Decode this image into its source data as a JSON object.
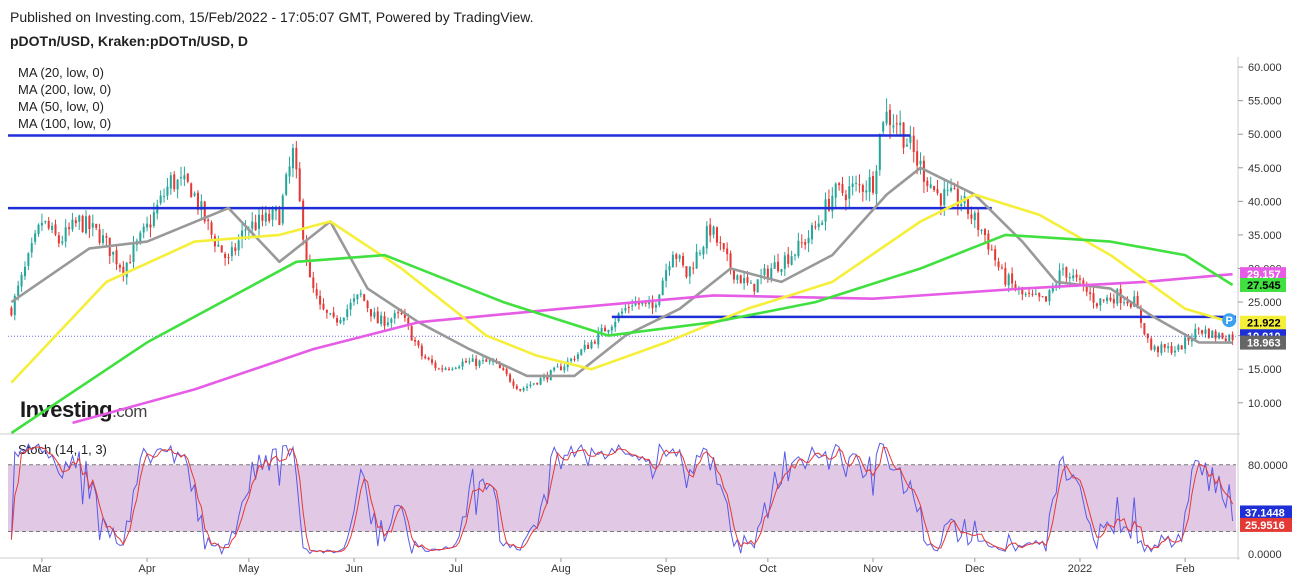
{
  "header": {
    "published": "Published on Investing.com, 15/Feb/2022 - 17:05:07 GMT, Powered by TradingView.",
    "symbol": "pDOTn/USD, Kraken:pDOTn/USD, D"
  },
  "logo": {
    "main": "Investing",
    "suffix": ".com"
  },
  "colors": {
    "up": "#26a69a",
    "down": "#e53935",
    "ma20": "#999999",
    "ma200": "#e65ce6",
    "ma50": "#f5ef3a",
    "ma100": "#3fe03f",
    "hline": "#1f2fd8",
    "stoch_k": "#5a5ae6",
    "stoch_d": "#e53935",
    "stoch_band": "#dcbfe0"
  },
  "chart_data": {
    "type": "candlestick",
    "ma_legend": [
      "MA (20, low, 0)",
      "MA (200, low, 0)",
      "MA (50, low, 0)",
      "MA (100, low, 0)"
    ],
    "x_labels": [
      "Mar",
      "Apr",
      "May",
      "Jun",
      "Jul",
      "Aug",
      "Sep",
      "Oct",
      "Nov",
      "Dec",
      "2022",
      "Feb"
    ],
    "y_ticks": [
      "60.000",
      "55.000",
      "50.000",
      "45.000",
      "40.000",
      "35.000",
      "30.000",
      "25.000",
      "20.000",
      "15.000",
      "10.000"
    ],
    "ylim": [
      5.5,
      61.5
    ],
    "horizontal_lines": [
      49.8,
      39.0,
      22.8
    ],
    "price_path": [
      {
        "x": "2021-02-20",
        "v": 24
      },
      {
        "x": "2021-03-01",
        "v": 37
      },
      {
        "x": "2021-03-06",
        "v": 34
      },
      {
        "x": "2021-03-12",
        "v": 37
      },
      {
        "x": "2021-03-18",
        "v": 35
      },
      {
        "x": "2021-03-25",
        "v": 30
      },
      {
        "x": "2021-04-01",
        "v": 36
      },
      {
        "x": "2021-04-08",
        "v": 43
      },
      {
        "x": "2021-04-14",
        "v": 42
      },
      {
        "x": "2021-04-20",
        "v": 35
      },
      {
        "x": "2021-04-25",
        "v": 31
      },
      {
        "x": "2021-04-30",
        "v": 36
      },
      {
        "x": "2021-05-10",
        "v": 38
      },
      {
        "x": "2021-05-14",
        "v": 47
      },
      {
        "x": "2021-05-19",
        "v": 28
      },
      {
        "x": "2021-05-22",
        "v": 24
      },
      {
        "x": "2021-05-26",
        "v": 22
      },
      {
        "x": "2021-06-03",
        "v": 26
      },
      {
        "x": "2021-06-08",
        "v": 22
      },
      {
        "x": "2021-06-15",
        "v": 23
      },
      {
        "x": "2021-06-21",
        "v": 17
      },
      {
        "x": "2021-06-26",
        "v": 15
      },
      {
        "x": "2021-07-03",
        "v": 16
      },
      {
        "x": "2021-07-12",
        "v": 16
      },
      {
        "x": "2021-07-20",
        "v": 12
      },
      {
        "x": "2021-07-28",
        "v": 14
      },
      {
        "x": "2021-08-03",
        "v": 16
      },
      {
        "x": "2021-08-10",
        "v": 19
      },
      {
        "x": "2021-08-16",
        "v": 22
      },
      {
        "x": "2021-08-22",
        "v": 25
      },
      {
        "x": "2021-08-28",
        "v": 24
      },
      {
        "x": "2021-09-03",
        "v": 33
      },
      {
        "x": "2021-09-07",
        "v": 29
      },
      {
        "x": "2021-09-14",
        "v": 36
      },
      {
        "x": "2021-09-20",
        "v": 30
      },
      {
        "x": "2021-09-26",
        "v": 27
      },
      {
        "x": "2021-10-02",
        "v": 30
      },
      {
        "x": "2021-10-10",
        "v": 33
      },
      {
        "x": "2021-10-15",
        "v": 36
      },
      {
        "x": "2021-10-20",
        "v": 41
      },
      {
        "x": "2021-10-27",
        "v": 42
      },
      {
        "x": "2021-11-01",
        "v": 43
      },
      {
        "x": "2021-11-04",
        "v": 53
      },
      {
        "x": "2021-11-08",
        "v": 52
      },
      {
        "x": "2021-11-14",
        "v": 46
      },
      {
        "x": "2021-11-20",
        "v": 41
      },
      {
        "x": "2021-11-27",
        "v": 40
      },
      {
        "x": "2021-12-04",
        "v": 35
      },
      {
        "x": "2021-12-09",
        "v": 29
      },
      {
        "x": "2021-12-15",
        "v": 26
      },
      {
        "x": "2021-12-22",
        "v": 25
      },
      {
        "x": "2021-12-27",
        "v": 30
      },
      {
        "x": "2022-01-02",
        "v": 27
      },
      {
        "x": "2022-01-06",
        "v": 25
      },
      {
        "x": "2022-01-12",
        "v": 26
      },
      {
        "x": "2022-01-17",
        "v": 25
      },
      {
        "x": "2022-01-22",
        "v": 18
      },
      {
        "x": "2022-01-30",
        "v": 18
      },
      {
        "x": "2022-02-05",
        "v": 21
      },
      {
        "x": "2022-02-10",
        "v": 20
      },
      {
        "x": "2022-02-15",
        "v": 19.9
      }
    ],
    "ma_lines": [
      {
        "name": "MA (20, low, 0)",
        "color": "#999999",
        "points": [
          {
            "x": "2021-02-20",
            "v": 25
          },
          {
            "x": "2021-03-15",
            "v": 33
          },
          {
            "x": "2021-04-01",
            "v": 34
          },
          {
            "x": "2021-04-25",
            "v": 39
          },
          {
            "x": "2021-05-10",
            "v": 31
          },
          {
            "x": "2021-05-25",
            "v": 37
          },
          {
            "x": "2021-06-05",
            "v": 27
          },
          {
            "x": "2021-06-20",
            "v": 22
          },
          {
            "x": "2021-07-05",
            "v": 18
          },
          {
            "x": "2021-07-22",
            "v": 14
          },
          {
            "x": "2021-08-05",
            "v": 14
          },
          {
            "x": "2021-08-20",
            "v": 20
          },
          {
            "x": "2021-09-05",
            "v": 24
          },
          {
            "x": "2021-09-20",
            "v": 30
          },
          {
            "x": "2021-10-05",
            "v": 28
          },
          {
            "x": "2021-10-20",
            "v": 32
          },
          {
            "x": "2021-11-05",
            "v": 41
          },
          {
            "x": "2021-11-15",
            "v": 45
          },
          {
            "x": "2021-12-01",
            "v": 41
          },
          {
            "x": "2021-12-15",
            "v": 34
          },
          {
            "x": "2021-12-25",
            "v": 28
          },
          {
            "x": "2022-01-10",
            "v": 27
          },
          {
            "x": "2022-01-22",
            "v": 23
          },
          {
            "x": "2022-02-05",
            "v": 19
          },
          {
            "x": "2022-02-15",
            "v": 18.963
          }
        ]
      },
      {
        "name": "MA (200, low, 0)",
        "color": "#e65ce6",
        "points": [
          {
            "x": "2021-03-10",
            "v": 7
          },
          {
            "x": "2021-04-15",
            "v": 12
          },
          {
            "x": "2021-05-20",
            "v": 18
          },
          {
            "x": "2021-06-20",
            "v": 22
          },
          {
            "x": "2021-08-01",
            "v": 24
          },
          {
            "x": "2021-09-15",
            "v": 26
          },
          {
            "x": "2021-11-01",
            "v": 25.5
          },
          {
            "x": "2021-12-15",
            "v": 27
          },
          {
            "x": "2022-01-20",
            "v": 28
          },
          {
            "x": "2022-02-15",
            "v": 29.157
          }
        ]
      },
      {
        "name": "MA (50, low, 0)",
        "color": "#f5ef3a",
        "points": [
          {
            "x": "2021-02-20",
            "v": 13
          },
          {
            "x": "2021-03-20",
            "v": 28
          },
          {
            "x": "2021-04-15",
            "v": 34
          },
          {
            "x": "2021-05-10",
            "v": 35
          },
          {
            "x": "2021-05-25",
            "v": 37
          },
          {
            "x": "2021-06-15",
            "v": 30
          },
          {
            "x": "2021-07-10",
            "v": 20
          },
          {
            "x": "2021-07-25",
            "v": 17
          },
          {
            "x": "2021-08-10",
            "v": 15
          },
          {
            "x": "2021-09-01",
            "v": 19
          },
          {
            "x": "2021-09-25",
            "v": 24
          },
          {
            "x": "2021-10-20",
            "v": 28
          },
          {
            "x": "2021-11-15",
            "v": 37
          },
          {
            "x": "2021-12-01",
            "v": 41
          },
          {
            "x": "2021-12-20",
            "v": 38
          },
          {
            "x": "2022-01-10",
            "v": 32
          },
          {
            "x": "2022-02-01",
            "v": 24
          },
          {
            "x": "2022-02-15",
            "v": 21.922
          }
        ]
      },
      {
        "name": "MA (100, low, 0)",
        "color": "#3fe03f",
        "points": [
          {
            "x": "2021-02-20",
            "v": 5.5
          },
          {
            "x": "2021-04-01",
            "v": 19
          },
          {
            "x": "2021-05-15",
            "v": 31
          },
          {
            "x": "2021-06-10",
            "v": 32
          },
          {
            "x": "2021-07-15",
            "v": 25
          },
          {
            "x": "2021-08-15",
            "v": 20
          },
          {
            "x": "2021-09-15",
            "v": 22
          },
          {
            "x": "2021-10-15",
            "v": 25
          },
          {
            "x": "2021-11-15",
            "v": 30
          },
          {
            "x": "2021-12-10",
            "v": 35
          },
          {
            "x": "2022-01-10",
            "v": 34
          },
          {
            "x": "2022-02-01",
            "v": 32
          },
          {
            "x": "2022-02-15",
            "v": 27.545
          }
        ]
      }
    ],
    "price_labels": [
      {
        "text": "29.157",
        "value": 29.157,
        "bg": "#e65ce6",
        "fg": "#ffffff"
      },
      {
        "text": "27.545",
        "value": 27.545,
        "bg": "#3fe03f",
        "fg": "#000000"
      },
      {
        "text": "21.922",
        "value": 21.922,
        "bg": "#f5ef3a",
        "fg": "#000000"
      },
      {
        "text": "19.910",
        "value": 19.91,
        "bg": "#1f2fd8",
        "fg": "#ffffff"
      },
      {
        "text": "18.963",
        "value": 18.963,
        "bg": "#666666",
        "fg": "#ffffff"
      }
    ],
    "stoch": {
      "label": "Stoch (14, 1, 3)",
      "ylim": [
        -2,
        105
      ],
      "band": [
        20,
        80
      ],
      "y_ticks": [
        "80.0000",
        "0.0000"
      ],
      "labels": [
        {
          "text": "37.1448",
          "value": 37.1448,
          "bg": "#1f2fd8"
        },
        {
          "text": "25.9516",
          "value": 25.9516,
          "bg": "#e53935"
        }
      ]
    }
  }
}
